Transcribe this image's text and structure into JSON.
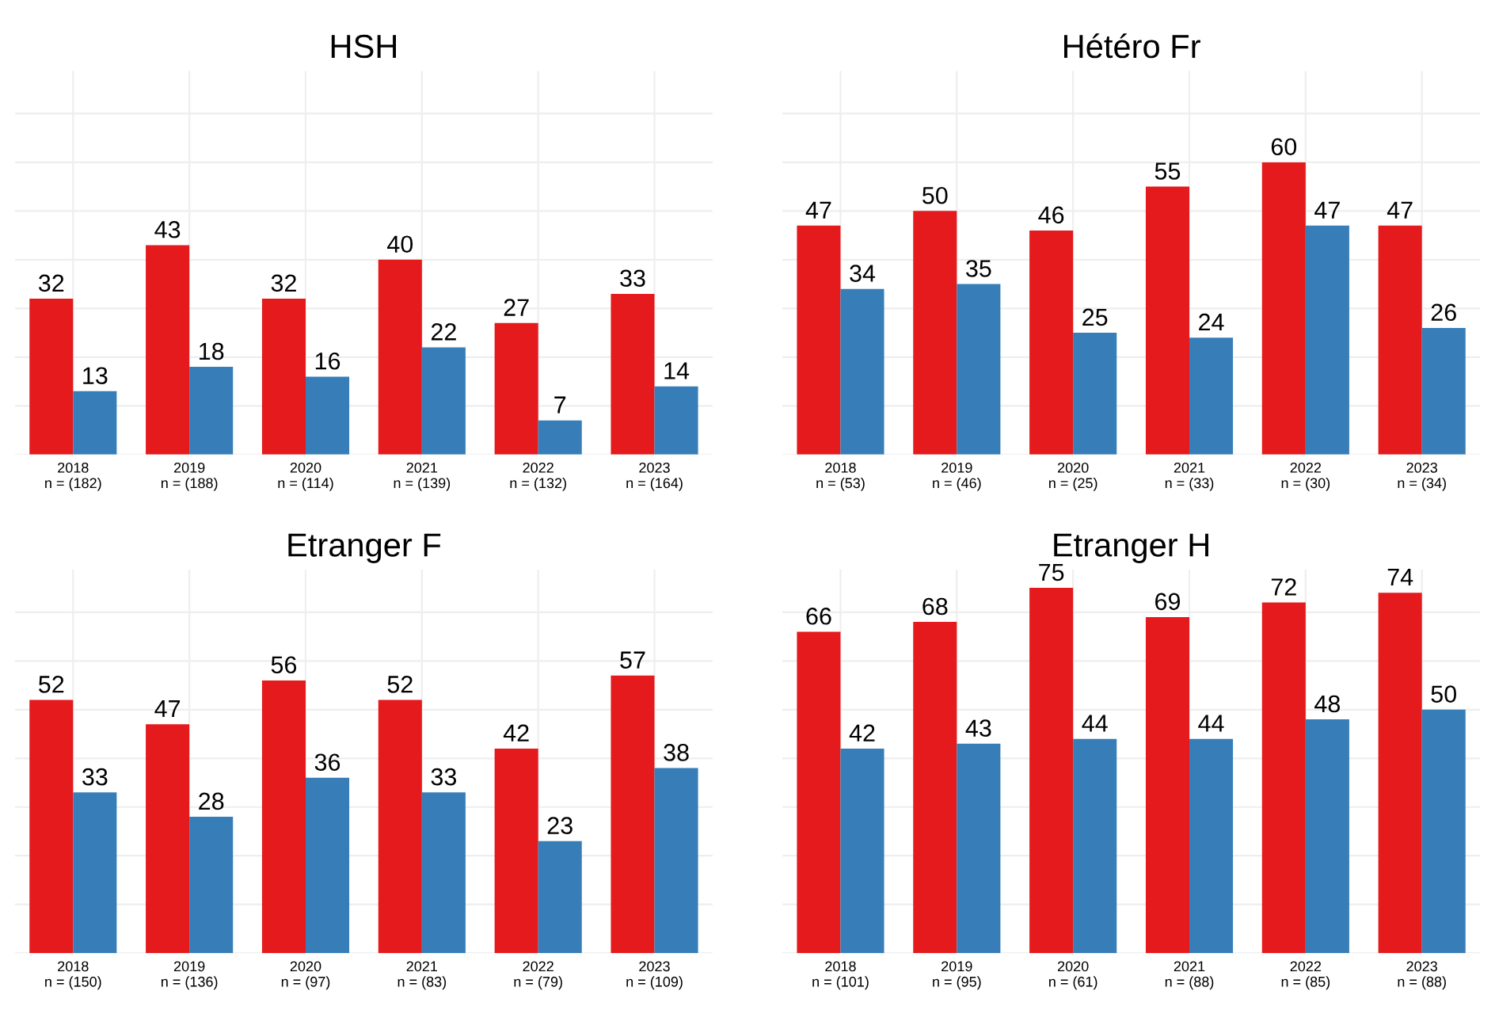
{
  "chart_data": [
    {
      "type": "bar",
      "title": "HSH",
      "categories": [
        "2018\nn = (182)",
        "2019\nn = (188)",
        "2020\nn = (114)",
        "2021\nn = (139)",
        "2022\nn = (132)",
        "2023\nn = (164)"
      ],
      "series": [
        {
          "color": "#e41a1c",
          "values": [
            32,
            43,
            32,
            40,
            27,
            33
          ]
        },
        {
          "color": "#377eb8",
          "values": [
            13,
            18,
            16,
            22,
            7,
            14
          ]
        }
      ],
      "data_labels": true,
      "grid": true,
      "tick_labels": "x",
      "legend": false
    },
    {
      "type": "bar",
      "title": "Hétéro Fr",
      "categories": [
        "2018\nn = (53)",
        "2019\nn = (46)",
        "2020\nn = (25)",
        "2021\nn = (33)",
        "2022\nn = (30)",
        "2023\nn = (34)"
      ],
      "series": [
        {
          "color": "#e41a1c",
          "values": [
            47,
            50,
            46,
            55,
            60,
            47
          ]
        },
        {
          "color": "#377eb8",
          "values": [
            34,
            35,
            25,
            24,
            47,
            26
          ]
        }
      ],
      "data_labels": true,
      "grid": true,
      "tick_labels": "x",
      "legend": false
    },
    {
      "type": "bar",
      "title": "Etranger F",
      "categories": [
        "2018\nn = (150)",
        "2019\nn = (136)",
        "2020\nn = (97)",
        "2021\nn = (83)",
        "2022\nn = (79)",
        "2023\nn = (109)"
      ],
      "series": [
        {
          "color": "#e41a1c",
          "values": [
            52,
            47,
            56,
            52,
            42,
            57
          ]
        },
        {
          "color": "#377eb8",
          "values": [
            33,
            28,
            36,
            33,
            23,
            38
          ]
        }
      ],
      "data_labels": true,
      "grid": true,
      "tick_labels": "x",
      "legend": false
    },
    {
      "type": "bar",
      "title": "Etranger H",
      "categories": [
        "2018\nn = (101)",
        "2019\nn = (95)",
        "2020\nn = (61)",
        "2021\nn = (88)",
        "2022\nn = (85)",
        "2023\nn = (88)"
      ],
      "series": [
        {
          "color": "#e41a1c",
          "values": [
            66,
            68,
            75,
            69,
            72,
            74
          ]
        },
        {
          "color": "#377eb8",
          "values": [
            42,
            43,
            44,
            44,
            48,
            50
          ]
        }
      ],
      "data_labels": true,
      "grid": true,
      "tick_labels": "x",
      "legend": false
    }
  ]
}
